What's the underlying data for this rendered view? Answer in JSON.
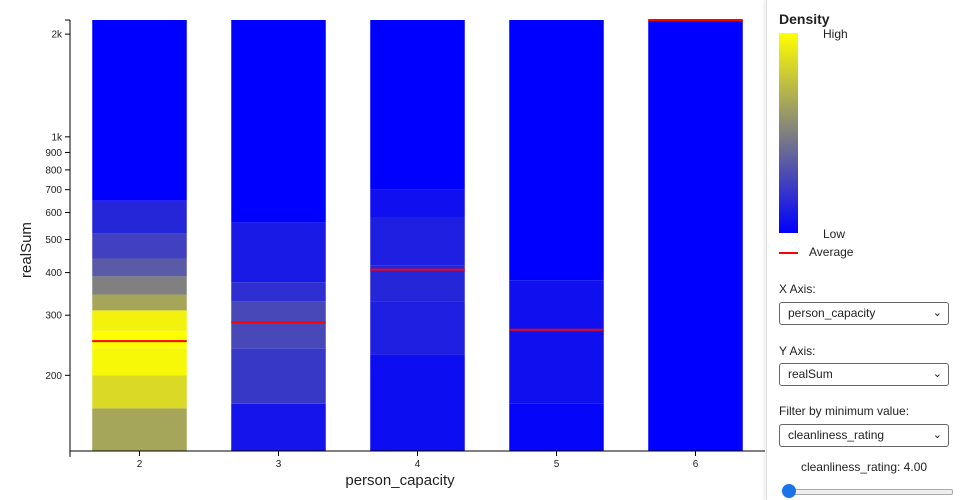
{
  "chart_data": {
    "type": "heatmap",
    "xlabel": "person_capacity",
    "ylabel": "realSum",
    "y_scale": "log",
    "ylim": [
      120,
      2200
    ],
    "categories": [
      "2",
      "3",
      "4",
      "5",
      "6"
    ],
    "y_ticks": [
      {
        "value": 200,
        "label": "200"
      },
      {
        "value": 300,
        "label": "300"
      },
      {
        "value": 400,
        "label": "400"
      },
      {
        "value": 500,
        "label": "500"
      },
      {
        "value": 600,
        "label": "600"
      },
      {
        "value": 700,
        "label": "700"
      },
      {
        "value": 800,
        "label": "800"
      },
      {
        "value": 900,
        "label": "900"
      },
      {
        "value": 1000,
        "label": "1k"
      },
      {
        "value": 2000,
        "label": "2k"
      }
    ],
    "averages": [
      252,
      286,
      408,
      272,
      2200
    ],
    "density_bands": [
      [
        {
          "from": 120,
          "to": 160,
          "density": 0.65
        },
        {
          "from": 160,
          "to": 200,
          "density": 0.85
        },
        {
          "from": 200,
          "to": 240,
          "density": 0.97
        },
        {
          "from": 240,
          "to": 270,
          "density": 1.0
        },
        {
          "from": 270,
          "to": 310,
          "density": 0.95
        },
        {
          "from": 310,
          "to": 345,
          "density": 0.65
        },
        {
          "from": 345,
          "to": 390,
          "density": 0.5
        },
        {
          "from": 390,
          "to": 440,
          "density": 0.35
        },
        {
          "from": 440,
          "to": 520,
          "density": 0.25
        },
        {
          "from": 520,
          "to": 650,
          "density": 0.15
        },
        {
          "from": 650,
          "to": 2200,
          "density": 0.0
        }
      ],
      [
        {
          "from": 120,
          "to": 165,
          "density": 0.08
        },
        {
          "from": 165,
          "to": 240,
          "density": 0.22
        },
        {
          "from": 240,
          "to": 330,
          "density": 0.28
        },
        {
          "from": 330,
          "to": 375,
          "density": 0.18
        },
        {
          "from": 375,
          "to": 560,
          "density": 0.1
        },
        {
          "from": 560,
          "to": 2200,
          "density": 0.0
        }
      ],
      [
        {
          "from": 120,
          "to": 230,
          "density": 0.05
        },
        {
          "from": 230,
          "to": 330,
          "density": 0.12
        },
        {
          "from": 330,
          "to": 420,
          "density": 0.15
        },
        {
          "from": 420,
          "to": 580,
          "density": 0.12
        },
        {
          "from": 580,
          "to": 700,
          "density": 0.06
        },
        {
          "from": 700,
          "to": 2200,
          "density": 0.0
        }
      ],
      [
        {
          "from": 120,
          "to": 165,
          "density": 0.02
        },
        {
          "from": 165,
          "to": 380,
          "density": 0.06
        },
        {
          "from": 380,
          "to": 2200,
          "density": 0.0
        }
      ],
      [
        {
          "from": 120,
          "to": 2200,
          "density": 0.0
        }
      ]
    ],
    "color_low": "#0000ff",
    "color_mid": "#808080",
    "color_high": "#ffff00",
    "average_color": "#ff0000",
    "legend_position": "right"
  },
  "legend": {
    "title": "Density",
    "high_label": "High",
    "low_label": "Low",
    "average_label": "Average"
  },
  "controls": {
    "x_axis_label": "X Axis:",
    "x_axis_value": "person_capacity",
    "y_axis_label": "Y Axis:",
    "y_axis_value": "realSum",
    "filter_label": "Filter by minimum value:",
    "filter_value": "cleanliness_rating",
    "slider_text": "cleanliness_rating: 4.00",
    "slider_fraction": 0.0
  }
}
